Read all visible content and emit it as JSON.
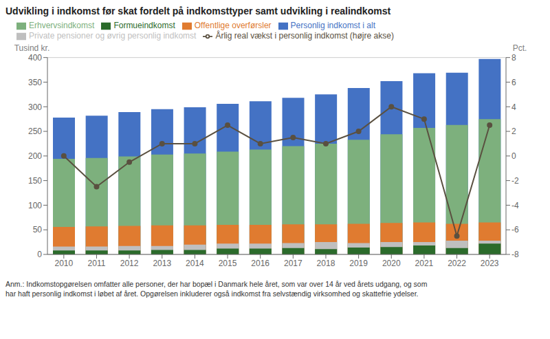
{
  "chart_data": {
    "type": "bar",
    "title": "Udvikling i indkomst før skat fordelt på indkomsttyper samt udvikling i realindkomst",
    "categories": [
      2010,
      2011,
      2012,
      2013,
      2014,
      2015,
      2016,
      2017,
      2018,
      2019,
      2020,
      2021,
      2022,
      2023
    ],
    "series": [
      {
        "name": "Personlig indkomst i alt",
        "type": "bar",
        "color": "#4472C4",
        "values": [
          278,
          282,
          289,
          295,
          299,
          306,
          311,
          318,
          325,
          338,
          352,
          368,
          369,
          397
        ]
      },
      {
        "name": "Erhvervsindkomst",
        "type": "bar",
        "color": "#7DB07D",
        "values": [
          194,
          196,
          199,
          203,
          205,
          209,
          213,
          220,
          225,
          233,
          244,
          257,
          263,
          275
        ]
      },
      {
        "name": "Offentlige overførsler",
        "type": "bar",
        "color": "#E07B30",
        "values": [
          56,
          57,
          58,
          59,
          59,
          60,
          60,
          61,
          61,
          62,
          64,
          65,
          62,
          65
        ]
      },
      {
        "name": "Private pensioner og øvrig personlig indkomst",
        "type": "bar",
        "color": "#BFBFBF",
        "values": [
          16,
          16,
          17,
          17,
          20,
          22,
          22,
          23,
          25,
          23,
          25,
          25,
          28,
          28
        ]
      },
      {
        "name": "Formueindkomst",
        "type": "bar",
        "color": "#2B6B2B",
        "values": [
          8,
          8,
          8,
          9,
          9,
          12,
          12,
          13,
          11,
          14,
          15,
          18,
          13,
          22
        ]
      },
      {
        "name": "Årlig real vækst i personlig indkomst (højre akse)",
        "type": "line",
        "axis": "y2",
        "color": "#5A5040",
        "marker": "circle",
        "values": [
          0.0,
          -2.5,
          -0.5,
          1.0,
          1.0,
          2.5,
          1.0,
          1.5,
          1.0,
          2.0,
          4.0,
          3.0,
          -6.5,
          2.5
        ]
      }
    ],
    "ylabel": "Tusind kr.",
    "y2label": "Pct.",
    "ylim": [
      0,
      400
    ],
    "yticks": [
      0,
      50,
      100,
      150,
      200,
      250,
      300,
      350,
      400
    ],
    "y2lim": [
      -8,
      8
    ],
    "y2ticks": [
      -8,
      -6,
      -4,
      -2,
      0,
      2,
      4,
      6,
      8
    ],
    "grid": true,
    "legend": "top",
    "footnote": "Anm.: Indkomstopgørelsen omfatter alle personer, der har bopæl i Danmark hele året, som var over 14 år ved årets udgang, og som\nhar haft personlig indkomst i løbet af året. Opgørelsen inkluderer også indkomst fra selvstændig virksomhed og skattefrie ydelser."
  }
}
